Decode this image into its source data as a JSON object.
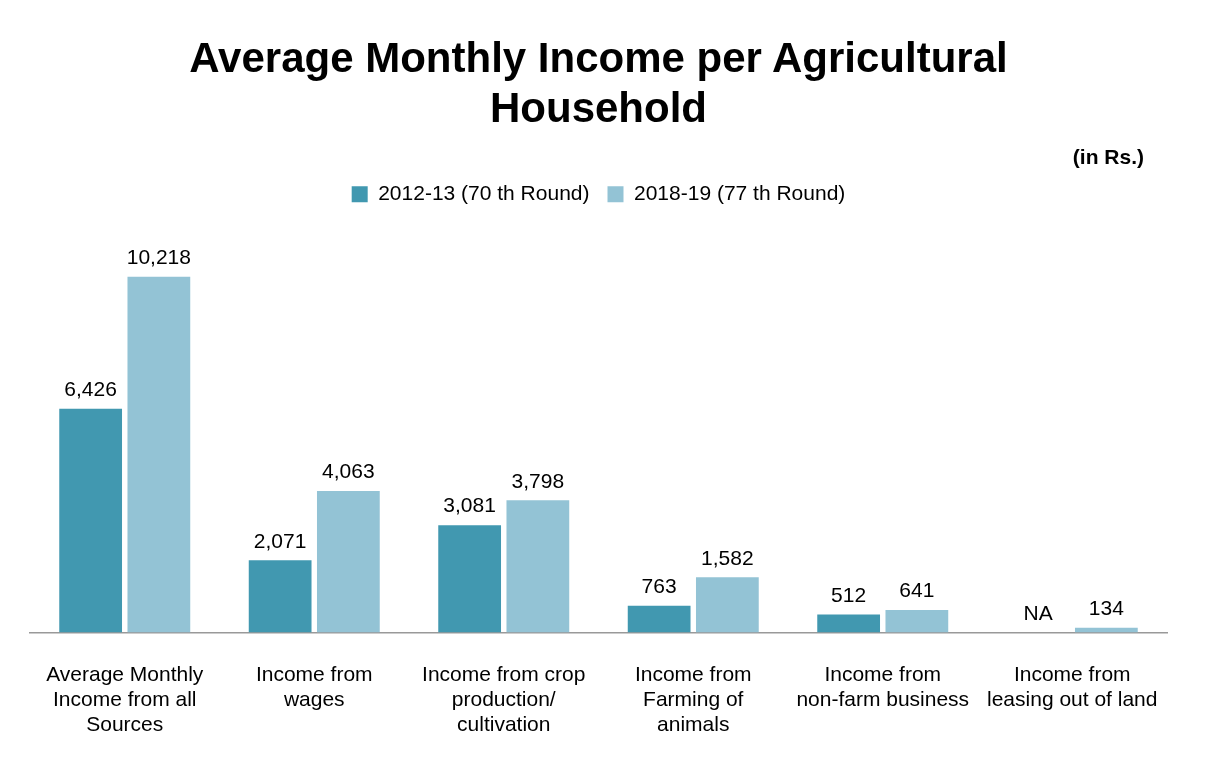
{
  "chart_data": {
    "type": "bar",
    "title": "Average Monthly Income per Agricultural Household",
    "annotations": [
      "(in Rs.)"
    ],
    "categories": [
      "Average Monthly Income from all Sources",
      "Income from wages",
      "Income from crop production/ cultivation",
      "Income from Farming of animals",
      "Income from non-farm business",
      "Income from leasing out of land"
    ],
    "series": [
      {
        "name": "2012-13 (70 th Round)",
        "color": "#4198b0",
        "values": [
          6426,
          2071,
          3081,
          763,
          512,
          null
        ],
        "value_labels": [
          "6,426",
          "2,071",
          "3,081",
          "763",
          "512",
          "NA"
        ]
      },
      {
        "name": "2018-19 (77 th Round)",
        "color": "#93c3d5",
        "values": [
          10218,
          4063,
          3798,
          1582,
          641,
          134
        ],
        "value_labels": [
          "10,218",
          "4,063",
          "3,798",
          "1,582",
          "641",
          "134"
        ]
      }
    ],
    "legend": "top",
    "grid": false
  }
}
